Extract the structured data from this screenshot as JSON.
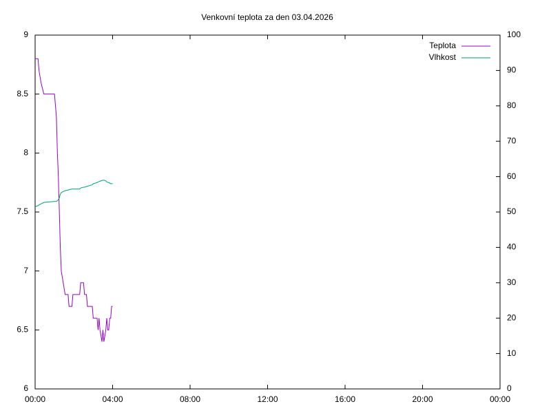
{
  "chart_data": {
    "type": "line",
    "title": "Venkovní teplota za den 03.04.2026",
    "x": [
      0,
      0.15,
      0.2,
      0.3,
      0.45,
      1.0,
      1.05,
      1.1,
      1.15,
      1.2,
      1.25,
      1.3,
      1.35,
      1.45,
      1.55,
      1.7,
      1.75,
      1.9,
      1.95,
      2.3,
      2.35,
      2.5,
      2.55,
      2.65,
      2.7,
      2.95,
      3.0,
      3.2,
      3.25,
      3.3,
      3.35,
      3.45,
      3.5,
      3.55,
      3.65,
      3.7,
      3.75,
      3.8,
      3.85,
      3.9,
      3.95,
      4.0
    ],
    "series": [
      {
        "name": "Teplota",
        "color": "#9400d3",
        "values": [
          8.8,
          8.8,
          8.7,
          8.6,
          8.5,
          8.5,
          8.4,
          8.3,
          8.0,
          7.8,
          7.5,
          7.2,
          7.0,
          6.9,
          6.8,
          6.8,
          6.7,
          6.7,
          6.8,
          6.8,
          6.9,
          6.9,
          6.8,
          6.8,
          6.7,
          6.7,
          6.6,
          6.6,
          6.5,
          6.6,
          6.5,
          6.4,
          6.5,
          6.4,
          6.5,
          6.6,
          6.5,
          6.5,
          6.6,
          6.6,
          6.7,
          6.7
        ]
      },
      {
        "name": "Vlhkost",
        "color": "#009e73",
        "axis": "y2",
        "values": [
          51.5,
          51.8,
          52,
          52.3,
          52.7,
          53,
          53,
          53,
          53.2,
          53.5,
          54,
          55,
          55.5,
          55.8,
          56,
          56.2,
          56.3,
          56.5,
          56.5,
          56.5,
          56.8,
          57,
          57,
          57.2,
          57.3,
          57.7,
          58,
          58.3,
          58.5,
          58.6,
          58.7,
          58.9,
          59,
          59,
          58.8,
          58.5,
          58.4,
          58.3,
          58.2,
          58,
          58,
          58
        ]
      }
    ],
    "xlim": [
      0,
      24
    ],
    "xticks": [
      {
        "value": 0,
        "label": "00:00"
      },
      {
        "value": 4,
        "label": "04:00"
      },
      {
        "value": 8,
        "label": "08:00"
      },
      {
        "value": 12,
        "label": "12:00"
      },
      {
        "value": 16,
        "label": "16:00"
      },
      {
        "value": 20,
        "label": "20:00"
      },
      {
        "value": 24,
        "label": "00:00"
      }
    ],
    "ylim": [
      6,
      9
    ],
    "yticks": [
      6,
      6.5,
      7,
      7.5,
      8,
      8.5,
      9
    ],
    "y2lim": [
      0,
      100
    ],
    "y2ticks": [
      0,
      10,
      20,
      30,
      40,
      50,
      60,
      70,
      80,
      90,
      100
    ],
    "legend": "top-right",
    "grid": false
  }
}
